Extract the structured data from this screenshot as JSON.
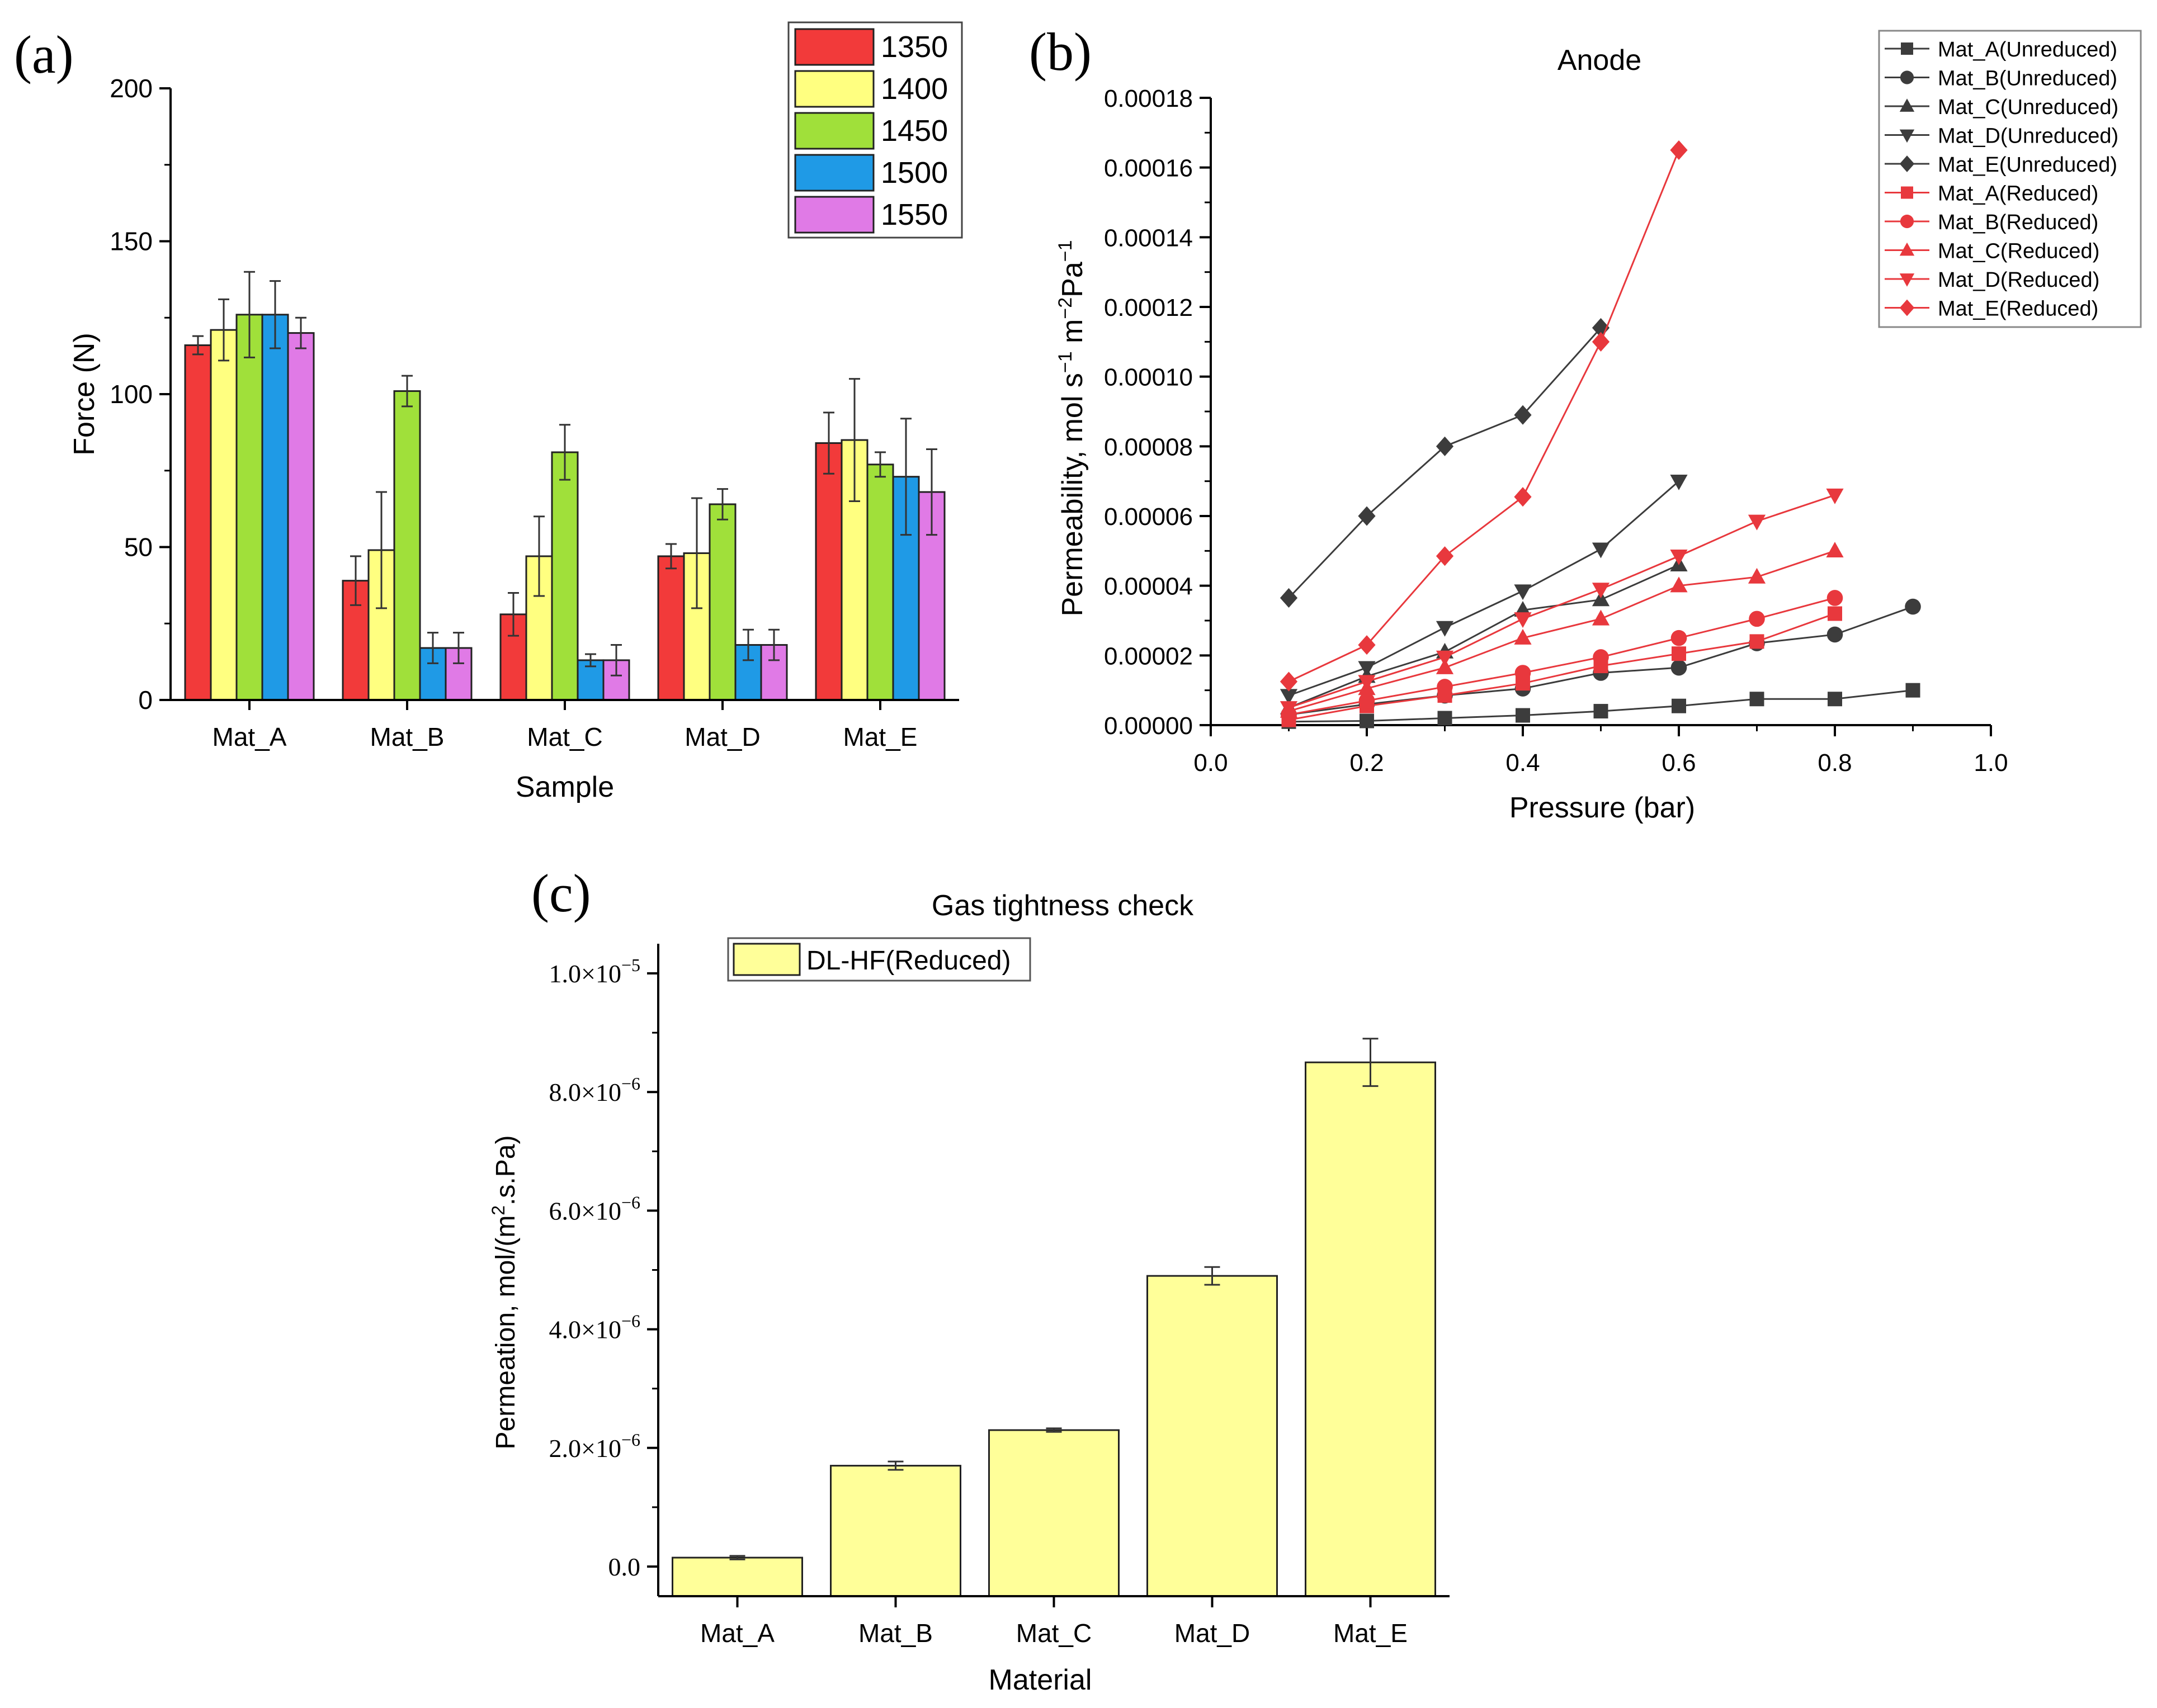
{
  "panels": {
    "a": {
      "label": "(a)"
    },
    "b": {
      "label": "(b)"
    },
    "c": {
      "label": "(c)"
    }
  },
  "chart_data": [
    {
      "id": "a",
      "type": "bar",
      "title": "",
      "xlabel": "Sample",
      "ylabel": "Force (N)",
      "ylim": [
        0,
        200
      ],
      "yticks": [
        "0",
        "50",
        "100",
        "150",
        "200"
      ],
      "categories": [
        "Mat_A",
        "Mat_B",
        "Mat_C",
        "Mat_D",
        "Mat_E"
      ],
      "legend_position": "top-right",
      "series": [
        {
          "name": "1350",
          "color": "#f23a3a",
          "values": [
            116,
            39,
            28,
            47,
            84
          ],
          "errors": [
            3,
            8,
            7,
            4,
            10
          ]
        },
        {
          "name": "1400",
          "color": "#ffff80",
          "values": [
            121,
            49,
            47,
            48,
            85
          ],
          "errors": [
            10,
            19,
            13,
            18,
            20
          ]
        },
        {
          "name": "1450",
          "color": "#a0e03a",
          "values": [
            126,
            101,
            81,
            64,
            77
          ],
          "errors": [
            14,
            5,
            9,
            5,
            4
          ]
        },
        {
          "name": "1500",
          "color": "#1f9ae6",
          "values": [
            126,
            17,
            13,
            18,
            73
          ],
          "errors": [
            11,
            5,
            2,
            5,
            19
          ]
        },
        {
          "name": "1550",
          "color": "#e07ae6",
          "values": [
            120,
            17,
            13,
            18,
            68
          ],
          "errors": [
            5,
            5,
            5,
            5,
            14
          ]
        }
      ]
    },
    {
      "id": "b",
      "type": "line",
      "title": "Anode",
      "xlabel": "Pressure (bar)",
      "ylabel_main": "Permeability, mol s",
      "ylabel_parts": [
        "Permeability, mol s",
        "−1",
        " m",
        "−2",
        "Pa",
        "−1"
      ],
      "xlim": [
        0,
        1.0
      ],
      "ylim": [
        0,
        0.00018
      ],
      "xticks": [
        "0.0",
        "0.2",
        "0.4",
        "0.6",
        "0.8",
        "1.0"
      ],
      "yticks": [
        "0.00000",
        "0.00002",
        "0.00004",
        "0.00006",
        "0.00008",
        "0.00010",
        "0.00012",
        "0.00014",
        "0.00016",
        "0.00018"
      ],
      "legend_position": "top-right",
      "series": [
        {
          "name": "Mat_A(Unreduced)",
          "color": "#3c3c3c",
          "marker": "square",
          "x": [
            0.1,
            0.2,
            0.3,
            0.4,
            0.5,
            0.6,
            0.7,
            0.8,
            0.9
          ],
          "y": [
            1e-06,
            1.2e-06,
            2e-06,
            2.8e-06,
            4e-06,
            5.5e-06,
            7.5e-06,
            7.5e-06,
            1e-05
          ]
        },
        {
          "name": "Mat_B(Unreduced)",
          "color": "#3c3c3c",
          "marker": "circle",
          "x": [
            0.1,
            0.2,
            0.3,
            0.4,
            0.5,
            0.6,
            0.7,
            0.8,
            0.9
          ],
          "y": [
            3e-06,
            6e-06,
            8.5e-06,
            1.05e-05,
            1.5e-05,
            1.65e-05,
            2.35e-05,
            2.6e-05,
            3.4e-05
          ]
        },
        {
          "name": "Mat_C(Unreduced)",
          "color": "#3c3c3c",
          "marker": "triangle-up",
          "x": [
            0.1,
            0.2,
            0.3,
            0.4,
            0.5,
            0.6
          ],
          "y": [
            5e-06,
            1.4e-05,
            2.1e-05,
            3.3e-05,
            3.6e-05,
            4.6e-05
          ]
        },
        {
          "name": "Mat_D(Unreduced)",
          "color": "#3c3c3c",
          "marker": "triangle-down",
          "x": [
            0.1,
            0.2,
            0.3,
            0.4,
            0.5,
            0.6
          ],
          "y": [
            8.5e-06,
            1.65e-05,
            2.8e-05,
            3.85e-05,
            5.05e-05,
            7e-05
          ]
        },
        {
          "name": "Mat_E(Unreduced)",
          "color": "#3c3c3c",
          "marker": "diamond",
          "x": [
            0.1,
            0.2,
            0.3,
            0.4,
            0.5
          ],
          "y": [
            3.65e-05,
            6e-05,
            8e-05,
            8.9e-05,
            0.000114
          ]
        },
        {
          "name": "Mat_A(Reduced)",
          "color": "#e8383d",
          "marker": "square",
          "x": [
            0.1,
            0.2,
            0.3,
            0.4,
            0.5,
            0.6,
            0.7,
            0.8
          ],
          "y": [
            1.5e-06,
            5.5e-06,
            8.5e-06,
            1.2e-05,
            1.7e-05,
            2.05e-05,
            2.4e-05,
            3.2e-05
          ]
        },
        {
          "name": "Mat_B(Reduced)",
          "color": "#e8383d",
          "marker": "circle",
          "x": [
            0.1,
            0.2,
            0.3,
            0.4,
            0.5,
            0.6,
            0.7,
            0.8
          ],
          "y": [
            3e-06,
            7e-06,
            1.1e-05,
            1.5e-05,
            1.95e-05,
            2.5e-05,
            3.05e-05,
            3.65e-05
          ]
        },
        {
          "name": "Mat_C(Reduced)",
          "color": "#e8383d",
          "marker": "triangle-up",
          "x": [
            0.1,
            0.2,
            0.3,
            0.4,
            0.5,
            0.6,
            0.7,
            0.8
          ],
          "y": [
            4e-06,
            1.05e-05,
            1.65e-05,
            2.5e-05,
            3.05e-05,
            4e-05,
            4.25e-05,
            5e-05
          ]
        },
        {
          "name": "Mat_D(Reduced)",
          "color": "#e8383d",
          "marker": "triangle-down",
          "x": [
            0.1,
            0.2,
            0.3,
            0.4,
            0.5,
            0.6,
            0.7,
            0.8
          ],
          "y": [
            5e-06,
            1.25e-05,
            1.95e-05,
            3.05e-05,
            3.9e-05,
            4.85e-05,
            5.85e-05,
            6.6e-05
          ]
        },
        {
          "name": "Mat_E(Reduced)",
          "color": "#e8383d",
          "marker": "diamond",
          "x": [
            0.1,
            0.2,
            0.3,
            0.4,
            0.5,
            0.6
          ],
          "y": [
            1.25e-05,
            2.3e-05,
            4.85e-05,
            6.55e-05,
            0.00011,
            0.000165
          ]
        }
      ]
    },
    {
      "id": "c",
      "type": "bar",
      "title": "Gas tightness check",
      "xlabel": "Material",
      "ylabel_parts": [
        "Permeation, mol/(m",
        "2",
        ".s.Pa)"
      ],
      "ylim": [
        -5e-07,
        1.05e-05
      ],
      "ytick_values": [
        0,
        2e-06,
        4e-06,
        6e-06,
        8e-06,
        1e-05
      ],
      "yticks": [
        {
          "mantissa": "0.0",
          "exp": ""
        },
        {
          "mantissa": "2.0×10",
          "exp": "−6"
        },
        {
          "mantissa": "4.0×10",
          "exp": "−6"
        },
        {
          "mantissa": "6.0×10",
          "exp": "−6"
        },
        {
          "mantissa": "8.0×10",
          "exp": "−6"
        },
        {
          "mantissa": "1.0×10",
          "exp": "−5"
        }
      ],
      "categories": [
        "Mat_A",
        "Mat_B",
        "Mat_C",
        "Mat_D",
        "Mat_E"
      ],
      "legend_position": "top-left",
      "series": [
        {
          "name": "DL-HF(Reduced)",
          "color": "#ffff99",
          "values": [
            1.5e-07,
            1.7e-06,
            2.3e-06,
            4.9e-06,
            8.5e-06
          ],
          "errors": [
            3e-08,
            7e-08,
            3e-08,
            1.5e-07,
            4e-07
          ]
        }
      ]
    }
  ]
}
